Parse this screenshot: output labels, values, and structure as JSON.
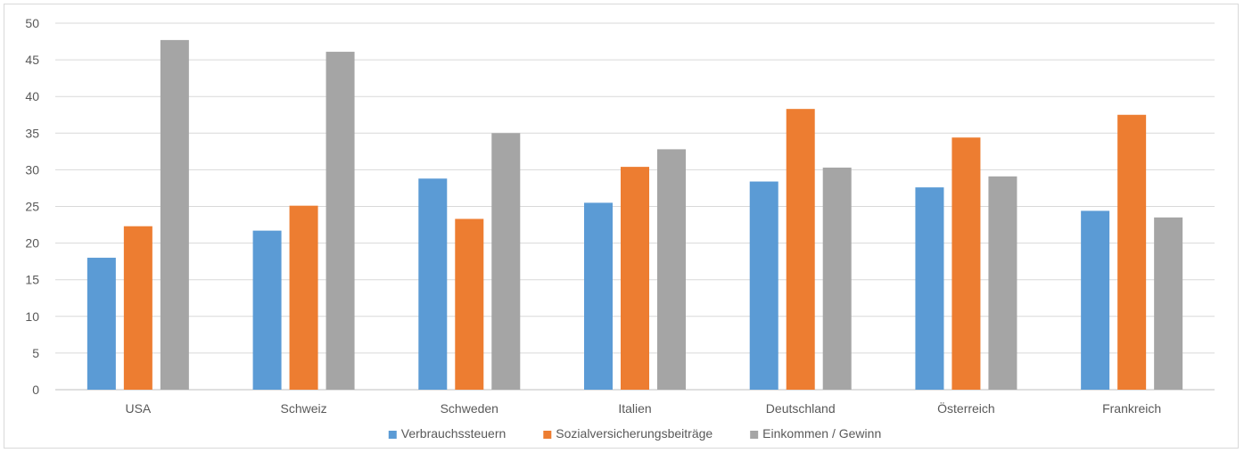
{
  "chart_data": {
    "type": "bar",
    "categories": [
      "USA",
      "Schweiz",
      "Schweden",
      "Italien",
      "Deutschland",
      "Österreich",
      "Frankreich"
    ],
    "series": [
      {
        "name": "Verbrauchssteuern",
        "color": "#5b9bd5",
        "values": [
          18.0,
          21.7,
          28.8,
          25.5,
          28.4,
          27.6,
          24.4
        ]
      },
      {
        "name": "Sozialversicherungsbeiträge",
        "color": "#ed7d31",
        "values": [
          22.3,
          25.1,
          23.3,
          30.4,
          38.3,
          34.4,
          37.5
        ]
      },
      {
        "name": "Einkommen / Gewinn",
        "color": "#a5a5a5",
        "values": [
          47.7,
          46.1,
          35.0,
          32.8,
          30.3,
          29.1,
          23.5
        ]
      }
    ],
    "ylim": [
      0,
      50
    ],
    "yticks": [
      0,
      5,
      10,
      15,
      20,
      25,
      30,
      35,
      40,
      45,
      50
    ],
    "grid": true,
    "legend_position": "bottom"
  }
}
